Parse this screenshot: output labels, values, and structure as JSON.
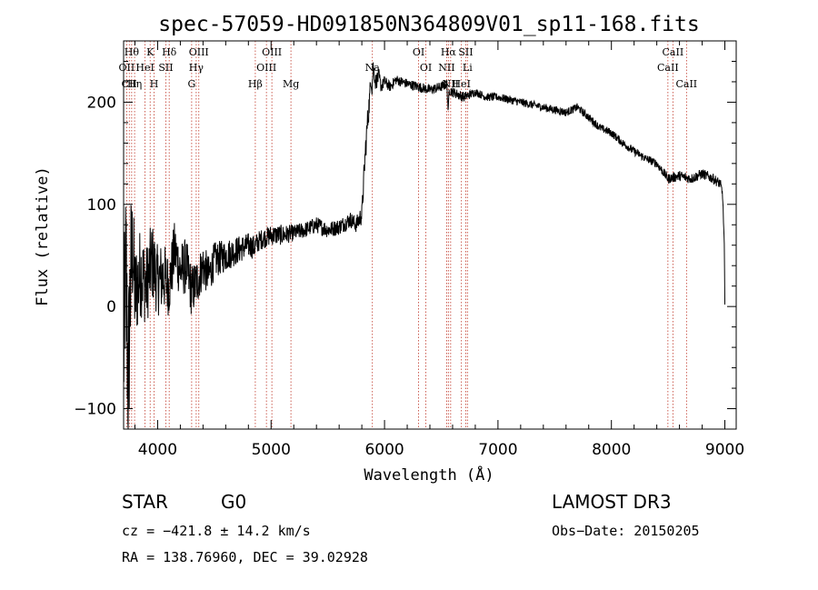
{
  "chart_data": {
    "type": "line",
    "title": "spec-57059-HD091850N364809V01_sp11-168.fits",
    "xlabel": "Wavelength (Å)",
    "ylabel": "Flux (relative)",
    "xlim": [
      3700,
      9100
    ],
    "ylim": [
      -120,
      260
    ],
    "xticks": [
      4000,
      5000,
      6000,
      7000,
      8000,
      9000
    ],
    "yticks": [
      -100,
      0,
      100,
      200
    ],
    "series": [
      {
        "name": "flux",
        "x": [
          3700,
          3720,
          3740,
          3760,
          3780,
          3800,
          3850,
          3900,
          3950,
          4000,
          4050,
          4100,
          4150,
          4200,
          4250,
          4300,
          4350,
          4400,
          4450,
          4500,
          4600,
          4700,
          4800,
          4850,
          4900,
          5000,
          5100,
          5200,
          5300,
          5400,
          5500,
          5600,
          5700,
          5750,
          5800,
          5830,
          5850,
          5870,
          5880,
          5890,
          5900,
          5920,
          5950,
          5970,
          6000,
          6050,
          6100,
          6200,
          6300,
          6400,
          6500,
          6550,
          6562,
          6570,
          6600,
          6700,
          6800,
          6900,
          7000,
          7200,
          7400,
          7600,
          7700,
          7800,
          7850,
          7900,
          8000,
          8100,
          8200,
          8300,
          8400,
          8500,
          8600,
          8700,
          8800,
          8900,
          8960,
          8980,
          8995,
          9000
        ],
        "y": [
          -50,
          40,
          -80,
          20,
          60,
          10,
          35,
          20,
          45,
          25,
          30,
          20,
          55,
          35,
          40,
          15,
          25,
          40,
          30,
          45,
          50,
          55,
          60,
          58,
          65,
          70,
          70,
          72,
          75,
          80,
          75,
          78,
          85,
          80,
          90,
          150,
          180,
          205,
          225,
          215,
          235,
          220,
          225,
          215,
          220,
          215,
          222,
          218,
          215,
          212,
          215,
          218,
          190,
          212,
          210,
          205,
          210,
          205,
          205,
          200,
          195,
          190,
          195,
          185,
          180,
          175,
          170,
          160,
          152,
          145,
          140,
          125,
          128,
          125,
          130,
          125,
          120,
          110,
          60,
          0
        ],
        "noise": [
          90,
          90,
          90,
          90,
          60,
          50,
          45,
          40,
          40,
          35,
          35,
          30,
          30,
          28,
          28,
          26,
          24,
          22,
          20,
          18,
          16,
          14,
          12,
          12,
          10,
          10,
          10,
          8,
          8,
          8,
          8,
          8,
          8,
          8,
          10,
          14,
          14,
          12,
          10,
          10,
          8,
          8,
          8,
          6,
          6,
          5,
          5,
          5,
          5,
          5,
          5,
          5,
          5,
          5,
          5,
          5,
          4,
          4,
          4,
          4,
          4,
          4,
          4,
          4,
          4,
          4,
          4,
          4,
          4,
          4,
          4,
          5,
          5,
          5,
          5,
          5,
          5,
          5,
          5,
          5
        ]
      }
    ],
    "lines": [
      {
        "wave": 3727,
        "label": "OII",
        "row": 2
      },
      {
        "wave": 3750,
        "label": "CII",
        "row": 3
      },
      {
        "wave": 3771,
        "label": "Hθ",
        "row": 1
      },
      {
        "wave": 3797,
        "label": "Hη",
        "row": 3
      },
      {
        "wave": 3889,
        "label": "HeI",
        "row": 2
      },
      {
        "wave": 3934,
        "label": "K",
        "row": 1
      },
      {
        "wave": 3969,
        "label": "H",
        "row": 3
      },
      {
        "wave": 4072,
        "label": "SII",
        "row": 2
      },
      {
        "wave": 4102,
        "label": "Hδ",
        "row": 1
      },
      {
        "wave": 4300,
        "label": "G",
        "row": 3
      },
      {
        "wave": 4340,
        "label": "Hγ",
        "row": 2
      },
      {
        "wave": 4363,
        "label": "OIII",
        "row": 1
      },
      {
        "wave": 4861,
        "label": "Hβ",
        "row": 3
      },
      {
        "wave": 4959,
        "label": "OIII",
        "row": 2
      },
      {
        "wave": 5007,
        "label": "OIII",
        "row": 1
      },
      {
        "wave": 5175,
        "label": "Mg",
        "row": 3
      },
      {
        "wave": 5893,
        "label": "Na",
        "row": 2
      },
      {
        "wave": 6300,
        "label": "OI",
        "row": 1
      },
      {
        "wave": 6364,
        "label": "OI",
        "row": 2
      },
      {
        "wave": 6548,
        "label": "NII",
        "row": 2
      },
      {
        "wave": 6563,
        "label": "Hα",
        "row": 1
      },
      {
        "wave": 6583,
        "label": "NII",
        "row": 3
      },
      {
        "wave": 6678,
        "label": "HeI",
        "row": 3
      },
      {
        "wave": 6716,
        "label": "SII",
        "row": 1
      },
      {
        "wave": 6731,
        "label": "Li",
        "row": 2
      },
      {
        "wave": 8498,
        "label": "CaII",
        "row": 2
      },
      {
        "wave": 8542,
        "label": "CaII",
        "row": 1
      },
      {
        "wave": 8662,
        "label": "CaII",
        "row": 3
      }
    ]
  },
  "info": {
    "object_class": "STAR",
    "subclass": "G0",
    "survey": "LAMOST DR3",
    "redshift_text": "cz = −421.8 ± 14.2 km/s",
    "obs_date_text": "Obs−Date: 20150205",
    "coords_text": "RA = 138.76960, DEC =  39.02928"
  }
}
